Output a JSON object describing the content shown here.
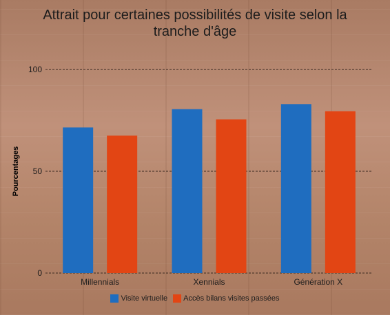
{
  "chart_data": {
    "type": "bar",
    "title_lines": [
      "Attrait pour certaines possibilités de visite selon la",
      "tranche d'âge"
    ],
    "ylabel": "Pourcentages",
    "xlabel": "",
    "categories": [
      "Millennials",
      "Xennials",
      "Génération X"
    ],
    "series": [
      {
        "name": "Visite virtuelle",
        "color": "#1f6dbf",
        "values": [
          71.5,
          80.5,
          83
        ]
      },
      {
        "name": "Accès bilans visites passées",
        "color": "#e24514",
        "values": [
          67.5,
          75.5,
          79.5
        ]
      }
    ],
    "ylim": [
      0,
      100
    ],
    "yticks": [
      0,
      50,
      100
    ],
    "grid": true,
    "legend_position": "bottom"
  }
}
